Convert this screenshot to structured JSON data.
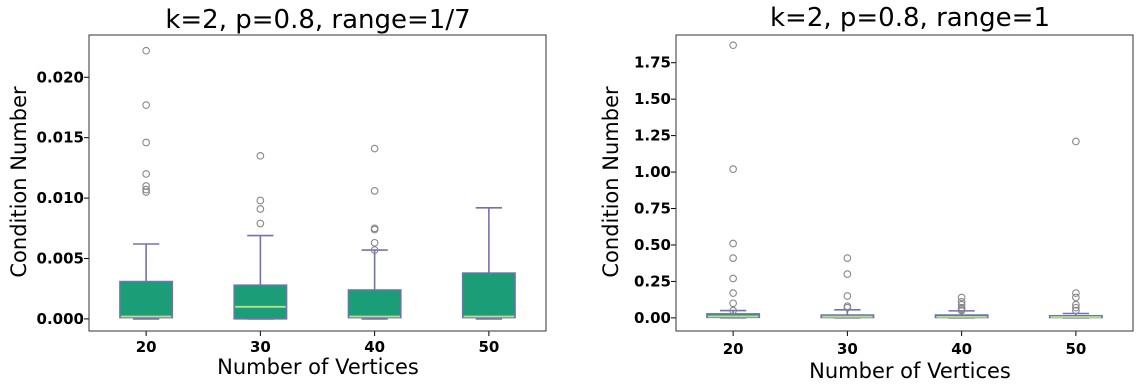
{
  "colors": {
    "box_fill": "#1b9e77",
    "box_edge": "#7570b3",
    "whisker": "#7570b3",
    "median": "#b8e186",
    "flier": "#888888",
    "frame": "#333333"
  },
  "chart_data": [
    {
      "type": "box",
      "title": "k=2, p=0.8, range=1/7",
      "xlabel": "Number of Vertices",
      "ylabel": "Condition Number",
      "categories": [
        "20",
        "30",
        "40",
        "50"
      ],
      "ylim": [
        -0.001,
        0.0235
      ],
      "yticks": [
        0.0,
        0.005,
        0.01,
        0.015,
        0.02
      ],
      "ytick_labels": [
        "0.000",
        "0.005",
        "0.010",
        "0.015",
        "0.020"
      ],
      "grid": false,
      "boxes": [
        {
          "label": "20",
          "whislo": 0.0,
          "q1": 0.0001,
          "med": 0.0002,
          "q3": 0.0031,
          "whishi": 0.0062,
          "fliers": [
            0.0222,
            0.0177,
            0.0146,
            0.012,
            0.011,
            0.0107,
            0.0105
          ]
        },
        {
          "label": "30",
          "whislo": 0.0,
          "q1": 0.0,
          "med": 0.001,
          "q3": 0.0028,
          "whishi": 0.0069,
          "fliers": [
            0.0135,
            0.0098,
            0.0091,
            0.0079
          ]
        },
        {
          "label": "40",
          "whislo": 0.0,
          "q1": 0.0001,
          "med": 0.0002,
          "q3": 0.0024,
          "whishi": 0.0057,
          "fliers": [
            0.0141,
            0.0106,
            0.0075,
            0.0074,
            0.0063,
            0.0057
          ]
        },
        {
          "label": "50",
          "whislo": 0.0,
          "q1": 0.0001,
          "med": 0.0002,
          "q3": 0.0038,
          "whishi": 0.0092,
          "fliers": []
        }
      ]
    },
    {
      "type": "box",
      "title": "k=2, p=0.8, range=1",
      "xlabel": "Number of Vertices",
      "ylabel": "Condition Number",
      "categories": [
        "20",
        "30",
        "40",
        "50"
      ],
      "ylim": [
        -0.09,
        1.94
      ],
      "yticks": [
        0.0,
        0.25,
        0.5,
        0.75,
        1.0,
        1.25,
        1.5,
        1.75
      ],
      "ytick_labels": [
        "0.00",
        "0.25",
        "0.50",
        "0.75",
        "1.00",
        "1.25",
        "1.50",
        "1.75"
      ],
      "grid": false,
      "boxes": [
        {
          "label": "20",
          "whislo": 0.0,
          "q1": 0.003,
          "med": 0.01,
          "q3": 0.028,
          "whishi": 0.05,
          "fliers": [
            1.87,
            1.02,
            0.51,
            0.41,
            0.27,
            0.17,
            0.1,
            0.05
          ]
        },
        {
          "label": "30",
          "whislo": 0.0,
          "q1": 0.002,
          "med": 0.008,
          "q3": 0.02,
          "whishi": 0.055,
          "fliers": [
            0.41,
            0.3,
            0.15,
            0.08,
            0.07
          ]
        },
        {
          "label": "40",
          "whislo": 0.0,
          "q1": 0.002,
          "med": 0.007,
          "q3": 0.02,
          "whishi": 0.048,
          "fliers": [
            0.14,
            0.11,
            0.09,
            0.07,
            0.06,
            0.05
          ]
        },
        {
          "label": "50",
          "whislo": 0.0,
          "q1": 0.002,
          "med": 0.006,
          "q3": 0.015,
          "whishi": 0.03,
          "fliers": [
            1.21,
            0.17,
            0.14,
            0.09,
            0.07,
            0.05
          ]
        }
      ]
    }
  ]
}
